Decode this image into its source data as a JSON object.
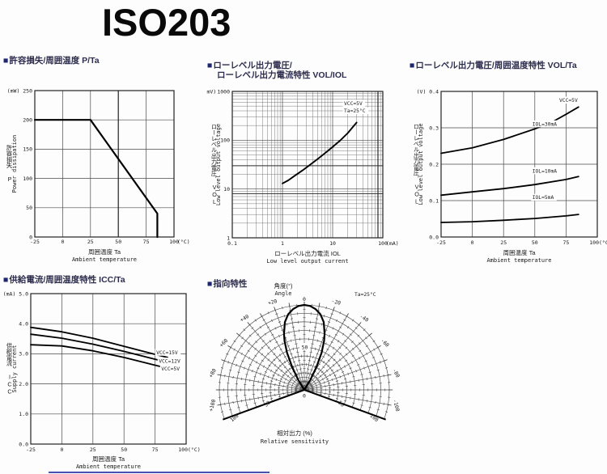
{
  "page": {
    "title": "ISO203",
    "bullet": "■"
  },
  "chart_data": [
    {
      "id": "power-dissipation",
      "type": "line",
      "header": "許容損失/周囲温度 P/Ta",
      "x": {
        "label_jp": "周囲温度 Ta",
        "label_en": "Ambient temperature",
        "unit": "(°C)",
        "min": -25,
        "max": 100,
        "ticks": [
          -25,
          0,
          25,
          50,
          75,
          100
        ],
        "tick_labels": [
          "-25",
          "0",
          "25",
          "50",
          "75",
          "100"
        ],
        "emphasis": [
          50
        ]
      },
      "y": {
        "label_jp": "許容損失 P",
        "label_en": "Power dissipation",
        "unit": "(mW)",
        "min": 0,
        "max": 250,
        "ticks": [
          0,
          50,
          100,
          150,
          200,
          250
        ],
        "tick_labels": [
          "0",
          "50",
          "100",
          "150",
          "200",
          "250"
        ]
      },
      "series": [
        {
          "name": "P",
          "points": [
            [
              -25,
              200
            ],
            [
              25,
              200
            ],
            [
              85,
              40
            ],
            [
              85,
              0
            ]
          ]
        }
      ]
    },
    {
      "id": "vol-iol",
      "type": "line",
      "header_lines": [
        "ローレベル出力電圧/",
        "ローレベル出力電流特性 VOL/IOL"
      ],
      "annotations": [
        "VCC=5V",
        "Ta=25°C"
      ],
      "x": {
        "log": true,
        "label_jp": "ローレベル出力電流 IOL",
        "label_en": "Low level output current",
        "unit": "(mA)",
        "min": 0.1,
        "max": 100,
        "ticks": [
          0.1,
          1,
          10,
          100
        ],
        "tick_labels": [
          "0.1",
          "1",
          "10",
          "100"
        ],
        "emphasis": [
          80
        ]
      },
      "y": {
        "log": true,
        "label_jp": "ローレベル出力電圧 VOL",
        "label_en": "Low level output voltage",
        "unit": "(mV)",
        "min": 1,
        "max": 1000,
        "ticks": [
          1,
          10,
          100,
          1000
        ],
        "tick_labels": [
          "1",
          "10",
          "100",
          "1000"
        ],
        "emphasis": [
          30,
          8
        ]
      },
      "series": [
        {
          "name": "VOL",
          "points": [
            [
              1,
              13
            ],
            [
              1.3,
              15
            ],
            [
              1.8,
              19
            ],
            [
              2.5,
              24
            ],
            [
              3.5,
              31
            ],
            [
              5,
              41
            ],
            [
              7,
              54
            ],
            [
              10,
              73
            ],
            [
              14,
              98
            ],
            [
              20,
              140
            ],
            [
              30,
              230
            ]
          ]
        }
      ]
    },
    {
      "id": "vol-ta",
      "type": "line",
      "header": "ローレベル出力電圧/周囲温度特性 VOL/Ta",
      "annotations": [
        "VCC=5V"
      ],
      "x": {
        "label_jp": "周囲温度 Ta",
        "label_en": "Ambient temperature",
        "unit": "(°C)",
        "min": -25,
        "max": 100,
        "ticks": [
          -25,
          0,
          25,
          50,
          75,
          100
        ],
        "tick_labels": [
          "-25",
          "0",
          "25",
          "50",
          "75",
          "100"
        ]
      },
      "y": {
        "label_jp": "ローレベル出力電圧 VOL",
        "label_en": "Low level output voltage",
        "unit": "(V)",
        "min": 0,
        "max": 0.4,
        "ticks": [
          0,
          0.1,
          0.2,
          0.3,
          0.4
        ],
        "tick_labels": [
          "0.0",
          "0.1",
          "0.2",
          "0.3",
          "0.4"
        ]
      },
      "series": [
        {
          "name": "IOL=30mA",
          "label_at": [
            48,
            0.306
          ],
          "points": [
            [
              -25,
              0.23
            ],
            [
              0,
              0.245
            ],
            [
              25,
              0.268
            ],
            [
              50,
              0.297
            ],
            [
              65,
              0.318
            ],
            [
              75,
              0.337
            ],
            [
              85,
              0.357
            ]
          ]
        },
        {
          "name": "IOL=10mA",
          "label_at": [
            48,
            0.177
          ],
          "points": [
            [
              -25,
              0.115
            ],
            [
              0,
              0.124
            ],
            [
              25,
              0.133
            ],
            [
              50,
              0.144
            ],
            [
              75,
              0.158
            ],
            [
              85,
              0.166
            ]
          ]
        },
        {
          "name": "IOL=5mA",
          "label_at": [
            48,
            0.104
          ],
          "points": [
            [
              -25,
              0.04
            ],
            [
              0,
              0.042
            ],
            [
              25,
              0.046
            ],
            [
              50,
              0.051
            ],
            [
              75,
              0.058
            ],
            [
              85,
              0.062
            ]
          ]
        }
      ]
    },
    {
      "id": "icc-ta",
      "type": "line",
      "header": "供給電流/周囲温度特性 ICC/Ta",
      "x": {
        "label_jp": "周囲温度 Ta",
        "label_en": "Ambient temperature",
        "unit": "(°C)",
        "min": -25,
        "max": 100,
        "ticks": [
          -25,
          0,
          25,
          50,
          75,
          100
        ],
        "tick_labels": [
          "-25",
          "0",
          "25",
          "50",
          "75",
          "100"
        ]
      },
      "y": {
        "label_jp": "供給電流 ICC",
        "label_en": "Supply current",
        "unit": "(mA)",
        "min": 0,
        "max": 5,
        "ticks": [
          0,
          1,
          2,
          3,
          4,
          5
        ],
        "tick_labels": [
          "0.0",
          "1.0",
          "2.0",
          "3.0",
          "4.0",
          "5.0"
        ]
      },
      "series": [
        {
          "name": "VCC=15V",
          "label_at": [
            76,
            2.99
          ],
          "points": [
            [
              -25,
              3.88
            ],
            [
              0,
              3.73
            ],
            [
              25,
              3.52
            ],
            [
              50,
              3.25
            ],
            [
              75,
              2.98
            ],
            [
              85,
              2.88
            ]
          ]
        },
        {
          "name": "VCC=12V",
          "label_at": [
            78,
            2.7
          ],
          "points": [
            [
              -25,
              3.65
            ],
            [
              0,
              3.52
            ],
            [
              25,
              3.32
            ],
            [
              50,
              3.08
            ],
            [
              75,
              2.82
            ],
            [
              85,
              2.72
            ]
          ]
        },
        {
          "name": "VCC=5V",
          "label_at": [
            80,
            2.44
          ],
          "points": [
            [
              -25,
              3.3
            ],
            [
              0,
              3.26
            ],
            [
              25,
              3.1
            ],
            [
              50,
              2.88
            ],
            [
              75,
              2.62
            ],
            [
              85,
              2.52
            ]
          ]
        }
      ]
    },
    {
      "id": "directivity",
      "type": "polar",
      "header": "指向特性",
      "annotation": "Ta=25°C",
      "angle_label_jp": "角度(°)",
      "angle_label_en": "Angle",
      "r_label_jp": "相対出力 (%)",
      "r_label_en": "Relative sensitivity",
      "r_max": 100,
      "rings": 10,
      "top_angle_label": "0",
      "angle_labels_left": [
        "+20",
        "+40",
        "+60",
        "+80",
        "+100"
      ],
      "angle_labels_right": [
        "-20",
        "-40",
        "-60",
        "-80",
        "-100"
      ],
      "r_zero_label": "0",
      "r_mid_label": "50",
      "r_max_label": "100",
      "lobe": [
        [
          -34,
          0
        ],
        [
          -31,
          14
        ],
        [
          -28,
          30
        ],
        [
          -25,
          48
        ],
        [
          -22,
          62
        ],
        [
          -20,
          70
        ],
        [
          -16,
          83
        ],
        [
          -12,
          91
        ],
        [
          -8,
          96
        ],
        [
          -4,
          99
        ],
        [
          0,
          100
        ],
        [
          4,
          99
        ],
        [
          8,
          96
        ],
        [
          12,
          91
        ],
        [
          16,
          83
        ],
        [
          20,
          70
        ],
        [
          22,
          62
        ],
        [
          25,
          48
        ],
        [
          28,
          30
        ],
        [
          31,
          14
        ],
        [
          34,
          0
        ]
      ]
    }
  ]
}
